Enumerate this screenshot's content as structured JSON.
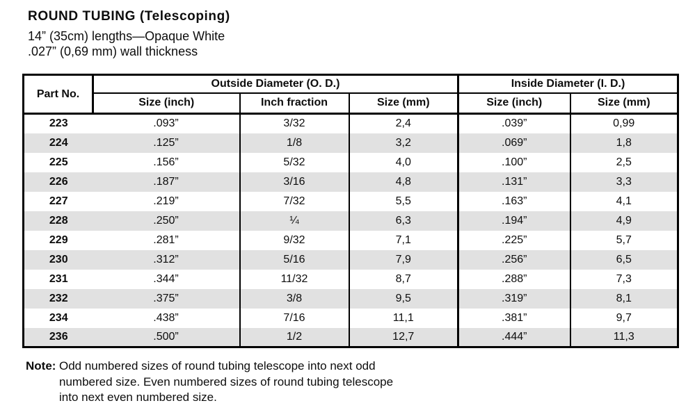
{
  "header": {
    "title": "ROUND TUBING (Telescoping)",
    "subtitle_line1": "14” (35cm) lengths—Opaque White",
    "subtitle_line2": ".027” (0,69 mm) wall thickness"
  },
  "table": {
    "corner_header": "Part No.",
    "groups": [
      {
        "label": "Outside Diameter (O. D.)",
        "columns": [
          "Size (inch)",
          "Inch fraction",
          "Size (mm)"
        ]
      },
      {
        "label": "Inside Diameter (I. D.)",
        "columns": [
          "Size (inch)",
          "Size (mm)"
        ]
      }
    ],
    "rows": [
      {
        "part_no": "223",
        "od_inch": ".093”",
        "od_fraction": "3/32",
        "od_mm": "2,4",
        "id_inch": ".039”",
        "id_mm": "0,99"
      },
      {
        "part_no": "224",
        "od_inch": ".125”",
        "od_fraction": "1/8",
        "od_mm": "3,2",
        "id_inch": ".069”",
        "id_mm": "1,8"
      },
      {
        "part_no": "225",
        "od_inch": ".156”",
        "od_fraction": "5/32",
        "od_mm": "4,0",
        "id_inch": ".100”",
        "id_mm": "2,5"
      },
      {
        "part_no": "226",
        "od_inch": ".187”",
        "od_fraction": "3/16",
        "od_mm": "4,8",
        "id_inch": ".131”",
        "id_mm": "3,3"
      },
      {
        "part_no": "227",
        "od_inch": ".219”",
        "od_fraction": "7/32",
        "od_mm": "5,5",
        "id_inch": ".163”",
        "id_mm": "4,1"
      },
      {
        "part_no": "228",
        "od_inch": ".250”",
        "od_fraction": "¼",
        "od_mm": "6,3",
        "id_inch": ".194”",
        "id_mm": "4,9"
      },
      {
        "part_no": "229",
        "od_inch": ".281”",
        "od_fraction": "9/32",
        "od_mm": "7,1",
        "id_inch": ".225”",
        "id_mm": "5,7"
      },
      {
        "part_no": "230",
        "od_inch": ".312”",
        "od_fraction": "5/16",
        "od_mm": "7,9",
        "id_inch": ".256”",
        "id_mm": "6,5"
      },
      {
        "part_no": "231",
        "od_inch": ".344”",
        "od_fraction": "11/32",
        "od_mm": "8,7",
        "id_inch": ".288”",
        "id_mm": "7,3"
      },
      {
        "part_no": "232",
        "od_inch": ".375”",
        "od_fraction": "3/8",
        "od_mm": "9,5",
        "id_inch": ".319”",
        "id_mm": "8,1"
      },
      {
        "part_no": "234",
        "od_inch": ".438”",
        "od_fraction": "7/16",
        "od_mm": "11,1",
        "id_inch": ".381”",
        "id_mm": "9,7"
      },
      {
        "part_no": "236",
        "od_inch": ".500”",
        "od_fraction": "1/2",
        "od_mm": "12,7",
        "id_inch": ".444”",
        "id_mm": "11,3"
      }
    ]
  },
  "note": {
    "label": "Note:",
    "lines": [
      "Odd numbered sizes of round tubing telescope into next odd",
      "numbered size. Even numbered sizes of round tubing telescope",
      "into next even numbered size."
    ]
  },
  "colors": {
    "row_alt": "#e1e1e1",
    "border": "#000000",
    "text": "#0d0d0d"
  }
}
